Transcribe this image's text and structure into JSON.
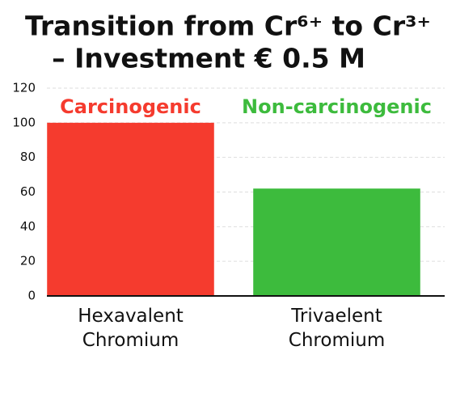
{
  "chart_data": {
    "type": "bar",
    "title": [
      "Transition from Cr⁶⁺ to Cr³⁺",
      "– Investment € 0.5 M"
    ],
    "categories": [
      "Hexavalent Chromium",
      "Trivaelent Chromium"
    ],
    "values": [
      100,
      62
    ],
    "colors": [
      "#f53b2e",
      "#3dbb3d"
    ],
    "annotations": [
      {
        "text": "Carcinogenic",
        "color": "#f53b2e"
      },
      {
        "text": "Non-carcinogenic",
        "color": "#3dbb3d"
      }
    ],
    "ylim": [
      0,
      120
    ],
    "yticks": [
      0,
      20,
      40,
      60,
      80,
      100,
      120
    ],
    "grid": true
  }
}
